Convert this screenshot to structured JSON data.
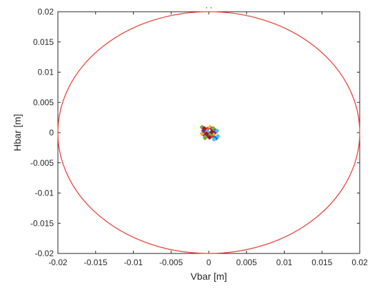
{
  "chart_data": {
    "type": "scatter",
    "title": ". .",
    "xlabel": "Vbar  [m]",
    "ylabel": "Hbar  [m]",
    "xlim": [
      -0.02,
      0.02
    ],
    "ylim": [
      -0.02,
      0.02
    ],
    "xticks": [
      "-0.02",
      "-0.015",
      "-0.01",
      "-0.005",
      "0",
      "0.005",
      "0.01",
      "0.015",
      "0.02"
    ],
    "yticks": [
      "-0.02",
      "-0.015",
      "-0.01",
      "-0.005",
      "0",
      "0.005",
      "0.01",
      "0.015",
      "0.02"
    ],
    "grid": false,
    "circle": {
      "center": [
        0,
        0
      ],
      "radius": 0.02,
      "color": "#e8453c"
    },
    "series": [
      {
        "color": "#0072bd",
        "points": [
          [
            0.0008,
            0.0004
          ],
          [
            0.0006,
            -0.0006
          ],
          [
            -0.0003,
            0.0005
          ],
          [
            0.001,
            -0.0009
          ],
          [
            -0.0006,
            -0.0004
          ]
        ]
      },
      {
        "color": "#d95319",
        "points": [
          [
            0.0001,
            -0.0002
          ],
          [
            0.0005,
            0.0002
          ],
          [
            -0.0005,
            0.0001
          ],
          [
            0.0003,
            -0.0006
          ],
          [
            -0.0002,
            0.0006
          ]
        ]
      },
      {
        "color": "#edb120",
        "points": [
          [
            -0.0008,
            0.0008
          ],
          [
            0.0002,
            0.0009
          ],
          [
            -0.0004,
            -0.0007
          ],
          [
            0.0007,
            -0.0002
          ],
          [
            -0.0009,
            -0.0002
          ]
        ]
      },
      {
        "color": "#7e2f8e",
        "points": [
          [
            0.0004,
            0.0006
          ],
          [
            -0.0001,
            -0.0005
          ],
          [
            0.0009,
            0.0001
          ],
          [
            -0.0007,
            0.0003
          ]
        ]
      },
      {
        "color": "#77ac30",
        "points": [
          [
            -0.0009,
            0.0009
          ],
          [
            0.0006,
            0.0007
          ],
          [
            -0.0005,
            -0.0009
          ],
          [
            0.0002,
            -0.0003
          ]
        ]
      },
      {
        "color": "#4dbeee",
        "points": [
          [
            0.0011,
            0.0003
          ],
          [
            0.0007,
            -0.0011
          ],
          [
            -0.0002,
            0.0002
          ],
          [
            0.0012,
            -0.0006
          ]
        ]
      },
      {
        "color": "#a2142f",
        "points": [
          [
            -0.0003,
            -0.0002
          ],
          [
            0.0004,
            0.0001
          ],
          [
            -0.0006,
            0.0007
          ],
          [
            0.0001,
            -0.0008
          ]
        ]
      }
    ]
  }
}
